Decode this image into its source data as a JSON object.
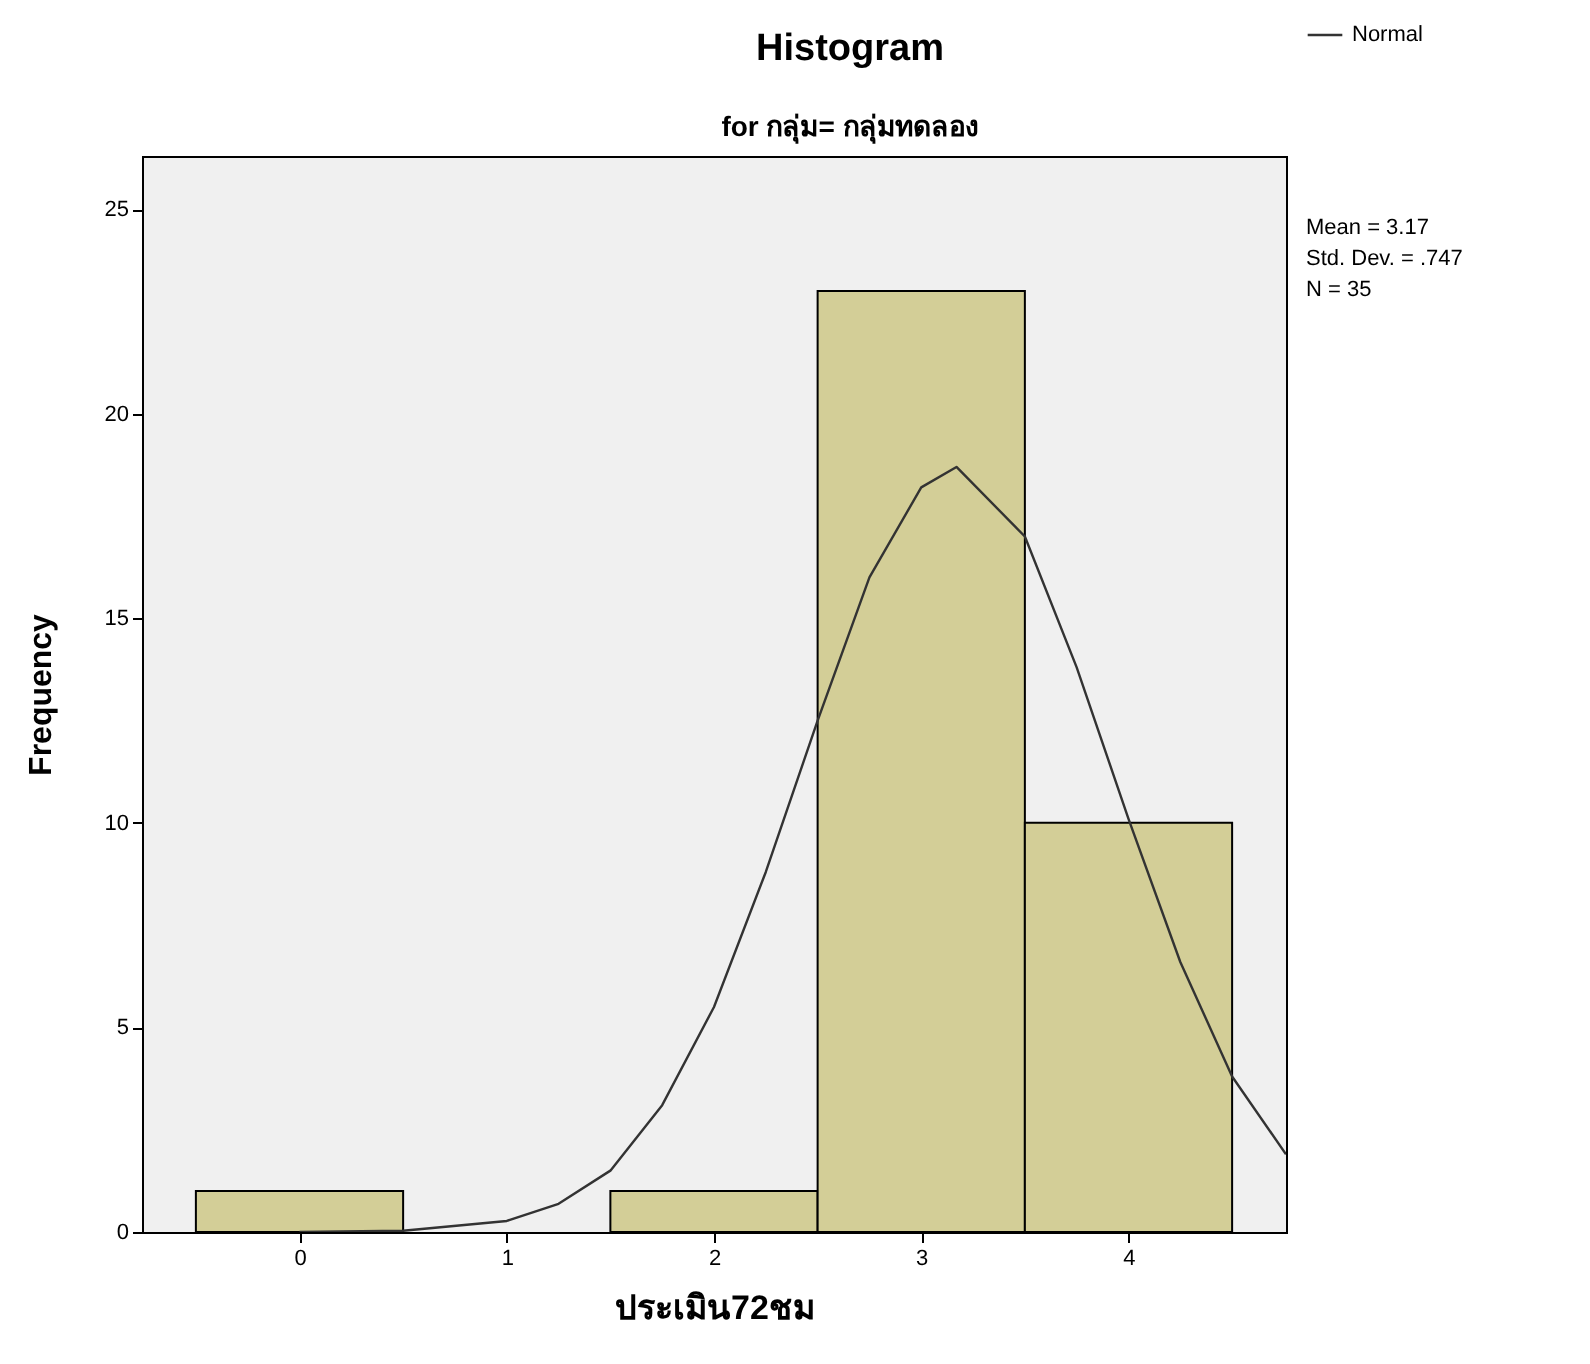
{
  "chart_data": {
    "type": "histogram",
    "title": "Histogram",
    "subtitle": "for กลุ่ม= กลุ่มทดลอง",
    "xlabel": "ประเมิน72ชม",
    "ylabel": "Frequency",
    "bins": [
      -0.5,
      0.5,
      1.5,
      2.5,
      3.5,
      4.5
    ],
    "values": [
      1,
      0,
      1,
      23,
      10
    ],
    "color": "#d3ce97",
    "series": [
      {
        "name": "Normal",
        "type": "line",
        "color": "#333333",
        "x": [
          0,
          0.5,
          1,
          1.25,
          1.5,
          1.75,
          2,
          2.25,
          2.5,
          2.75,
          3,
          3.17,
          3.5,
          3.75,
          4,
          4.25,
          4.5,
          4.76
        ],
        "values": [
          0.0,
          0.03,
          0.27,
          0.69,
          1.5,
          3.1,
          5.5,
          8.8,
          12.5,
          16.0,
          18.2,
          18.7,
          17.0,
          13.8,
          10.1,
          6.6,
          3.8,
          1.9
        ]
      }
    ],
    "xlim": [
      -0.76,
      4.76
    ],
    "ylim": [
      0,
      26.3
    ],
    "xticks": [
      0,
      1,
      2,
      3,
      4
    ],
    "yticks": [
      0,
      5,
      10,
      15,
      20,
      25
    ],
    "annotations": [
      "Mean = 3.17",
      "Std. Dev. = .747",
      "N = 35"
    ],
    "legend": "top right",
    "grid": false,
    "marker": "none",
    "line_style": "solid"
  }
}
